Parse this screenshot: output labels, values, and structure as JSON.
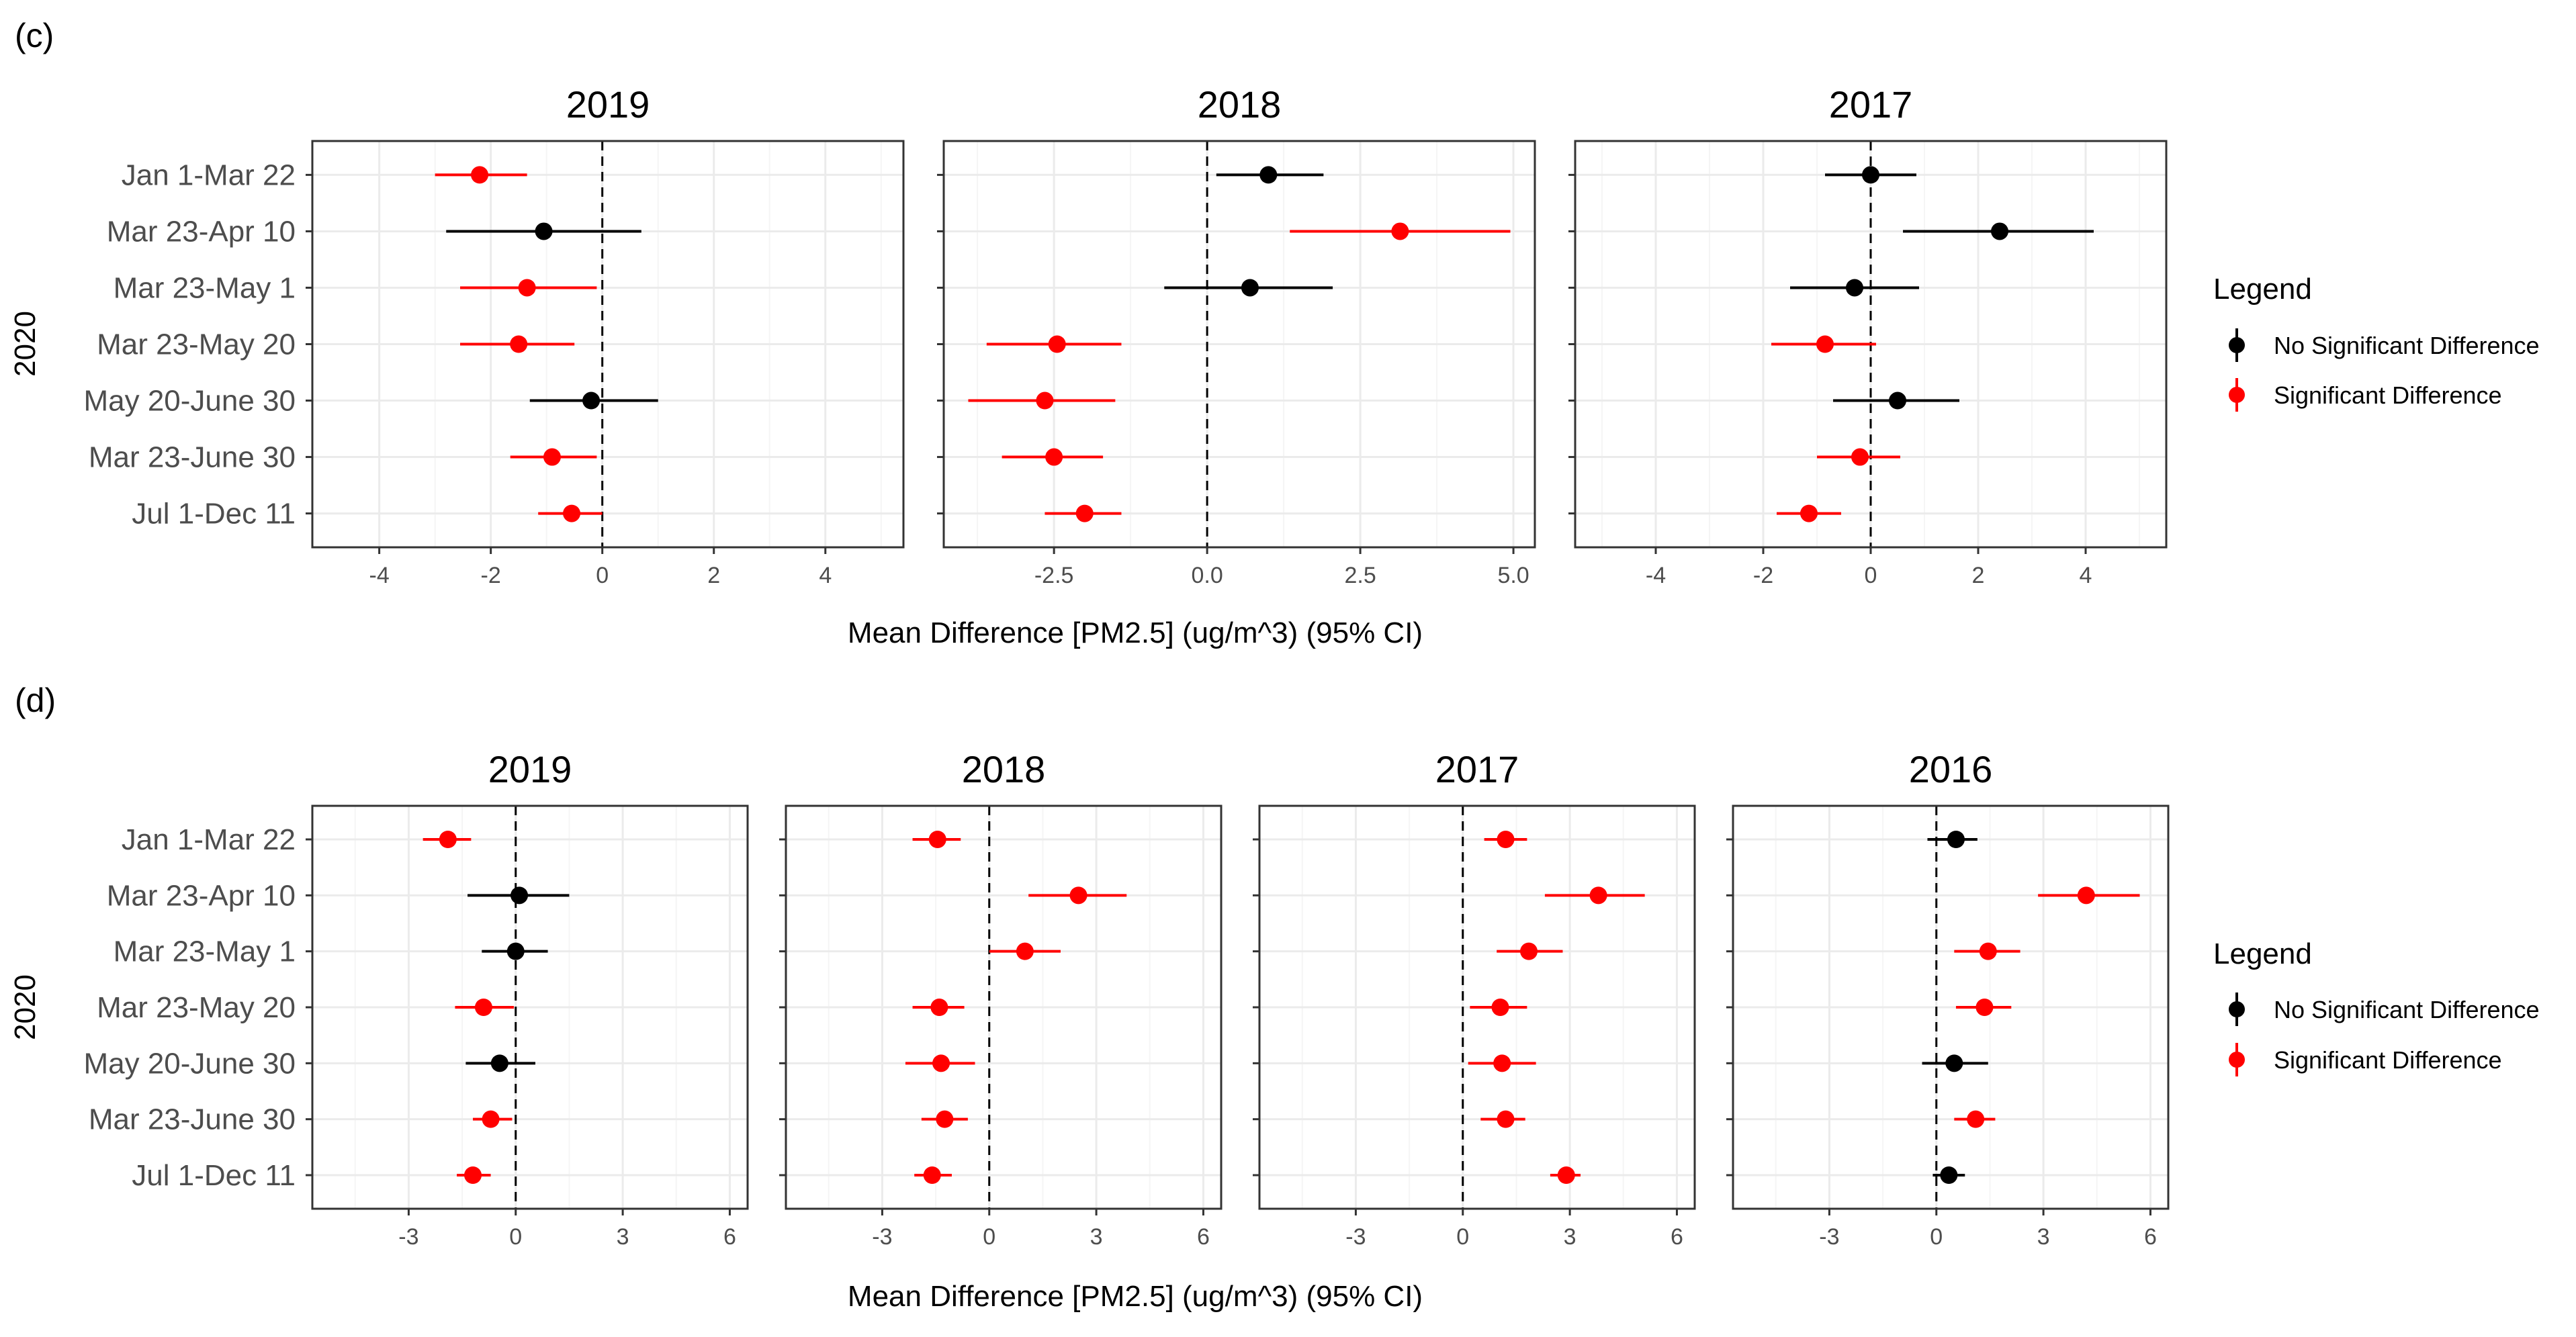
{
  "colors": {
    "no_significant": "#000000",
    "significant": "#ff0000",
    "grid_major": "#ebebeb",
    "grid_minor": "#f5f5f5",
    "axis_text": "#4d4d4d"
  },
  "chart_data": [
    {
      "type": "forest",
      "panel_label": "(c)",
      "y_axis_title": "2020",
      "x_axis_title": "Mean Difference [PM2.5] (ug/m^3) (95% CI)",
      "categories": [
        "Jan 1-Mar 22",
        "Mar 23-Apr 10",
        "Mar 23-May 1",
        "Mar 23-May 20",
        "May 20-June 30",
        "Mar 23-June 30",
        "Jul 1-Dec 11"
      ],
      "legend": {
        "title": "Legend",
        "entries": [
          {
            "label": "No Significant Difference",
            "color": "#000000"
          },
          {
            "label": "Significant Difference",
            "color": "#ff0000"
          }
        ]
      },
      "facets": [
        {
          "title": "2019",
          "xlim": [
            -5.2,
            5.4
          ],
          "xticks": [
            -4,
            -2,
            0,
            2,
            4
          ],
          "xtick_labels": [
            "-4",
            "-2",
            "0",
            "2",
            "4"
          ],
          "minor_ticks": [
            -3,
            -1,
            1,
            3,
            5
          ],
          "points": [
            {
              "category": "Jan 1-Mar 22",
              "estimate": -2.2,
              "lower": -3.0,
              "upper": -1.35,
              "significant": true
            },
            {
              "category": "Mar 23-Apr 10",
              "estimate": -1.05,
              "lower": -2.8,
              "upper": 0.7,
              "significant": false
            },
            {
              "category": "Mar 23-May 1",
              "estimate": -1.35,
              "lower": -2.55,
              "upper": -0.1,
              "significant": true
            },
            {
              "category": "Mar 23-May 20",
              "estimate": -1.5,
              "lower": -2.55,
              "upper": -0.5,
              "significant": true
            },
            {
              "category": "May 20-June 30",
              "estimate": -0.2,
              "lower": -1.3,
              "upper": 1.0,
              "significant": false
            },
            {
              "category": "Mar 23-June 30",
              "estimate": -0.9,
              "lower": -1.65,
              "upper": -0.1,
              "significant": true
            },
            {
              "category": "Jul 1-Dec 11",
              "estimate": -0.55,
              "lower": -1.15,
              "upper": 0.0,
              "significant": true
            }
          ]
        },
        {
          "title": "2018",
          "xlim": [
            -4.3,
            5.35
          ],
          "xticks": [
            -2.5,
            0.0,
            2.5,
            5.0
          ],
          "xtick_labels": [
            "-2.5",
            "0.0",
            "2.5",
            "5.0"
          ],
          "minor_ticks": [
            -3.75,
            -1.25,
            1.25,
            3.75
          ],
          "points": [
            {
              "category": "Jan 1-Mar 22",
              "estimate": 1.0,
              "lower": 0.15,
              "upper": 1.9,
              "significant": false
            },
            {
              "category": "Mar 23-Apr 10",
              "estimate": 3.15,
              "lower": 1.35,
              "upper": 4.95,
              "significant": true
            },
            {
              "category": "Mar 23-May 1",
              "estimate": 0.7,
              "lower": -0.7,
              "upper": 2.05,
              "significant": false
            },
            {
              "category": "Mar 23-May 20",
              "estimate": -2.45,
              "lower": -3.6,
              "upper": -1.4,
              "significant": true
            },
            {
              "category": "May 20-June 30",
              "estimate": -2.65,
              "lower": -3.9,
              "upper": -1.5,
              "significant": true
            },
            {
              "category": "Mar 23-June 30",
              "estimate": -2.5,
              "lower": -3.35,
              "upper": -1.7,
              "significant": true
            },
            {
              "category": "Jul 1-Dec 11",
              "estimate": -2.0,
              "lower": -2.65,
              "upper": -1.4,
              "significant": true
            }
          ]
        },
        {
          "title": "2017",
          "xlim": [
            -5.5,
            5.5
          ],
          "xticks": [
            -4,
            -2,
            0,
            2,
            4
          ],
          "xtick_labels": [
            "-4",
            "-2",
            "0",
            "2",
            "4"
          ],
          "minor_ticks": [
            -5,
            -3,
            -1,
            1,
            3,
            5
          ],
          "points": [
            {
              "category": "Jan 1-Mar 22",
              "estimate": 0.0,
              "lower": -0.85,
              "upper": 0.85,
              "significant": false
            },
            {
              "category": "Mar 23-Apr 10",
              "estimate": 2.4,
              "lower": 0.6,
              "upper": 4.15,
              "significant": false
            },
            {
              "category": "Mar 23-May 1",
              "estimate": -0.3,
              "lower": -1.5,
              "upper": 0.9,
              "significant": false
            },
            {
              "category": "Mar 23-May 20",
              "estimate": -0.85,
              "lower": -1.85,
              "upper": 0.1,
              "significant": true
            },
            {
              "category": "May 20-June 30",
              "estimate": 0.5,
              "lower": -0.7,
              "upper": 1.65,
              "significant": false
            },
            {
              "category": "Mar 23-June 30",
              "estimate": -0.2,
              "lower": -1.0,
              "upper": 0.55,
              "significant": true
            },
            {
              "category": "Jul 1-Dec 11",
              "estimate": -1.15,
              "lower": -1.75,
              "upper": -0.55,
              "significant": true
            }
          ]
        }
      ]
    },
    {
      "type": "forest",
      "panel_label": "(d)",
      "y_axis_title": "2020",
      "x_axis_title": "Mean Difference [PM2.5] (ug/m^3) (95% CI)",
      "categories": [
        "Jan 1-Mar 22",
        "Mar 23-Apr 10",
        "Mar 23-May 1",
        "Mar 23-May 20",
        "May 20-June 30",
        "Mar 23-June 30",
        "Jul 1-Dec 11"
      ],
      "legend": {
        "title": "Legend",
        "entries": [
          {
            "label": "No Significant Difference",
            "color": "#000000"
          },
          {
            "label": "Significant Difference",
            "color": "#ff0000"
          }
        ]
      },
      "facets": [
        {
          "title": "2019",
          "xlim": [
            -5.7,
            6.5
          ],
          "xticks": [
            -3,
            0,
            3,
            6
          ],
          "xtick_labels": [
            "-3",
            "0",
            "3",
            "6"
          ],
          "minor_ticks": [
            -4.5,
            -1.5,
            1.5,
            4.5
          ],
          "points": [
            {
              "category": "Jan 1-Mar 22",
              "estimate": -1.9,
              "lower": -2.6,
              "upper": -1.25,
              "significant": true
            },
            {
              "category": "Mar 23-Apr 10",
              "estimate": 0.1,
              "lower": -1.35,
              "upper": 1.5,
              "significant": false
            },
            {
              "category": "Mar 23-May 1",
              "estimate": 0.0,
              "lower": -0.95,
              "upper": 0.9,
              "significant": false
            },
            {
              "category": "Mar 23-May 20",
              "estimate": -0.9,
              "lower": -1.7,
              "upper": -0.05,
              "significant": true
            },
            {
              "category": "May 20-June 30",
              "estimate": -0.45,
              "lower": -1.4,
              "upper": 0.55,
              "significant": false
            },
            {
              "category": "Mar 23-June 30",
              "estimate": -0.7,
              "lower": -1.2,
              "upper": -0.1,
              "significant": true
            },
            {
              "category": "Jul 1-Dec 11",
              "estimate": -1.2,
              "lower": -1.65,
              "upper": -0.7,
              "significant": true
            }
          ]
        },
        {
          "title": "2018",
          "xlim": [
            -5.7,
            6.5
          ],
          "xticks": [
            -3,
            0,
            3,
            6
          ],
          "xtick_labels": [
            "-3",
            "0",
            "3",
            "6"
          ],
          "minor_ticks": [
            -4.5,
            -1.5,
            1.5,
            4.5
          ],
          "points": [
            {
              "category": "Jan 1-Mar 22",
              "estimate": -1.45,
              "lower": -2.15,
              "upper": -0.8,
              "significant": true
            },
            {
              "category": "Mar 23-Apr 10",
              "estimate": 2.5,
              "lower": 1.1,
              "upper": 3.85,
              "significant": true
            },
            {
              "category": "Mar 23-May 1",
              "estimate": 1.0,
              "lower": 0.0,
              "upper": 2.0,
              "significant": true
            },
            {
              "category": "Mar 23-May 20",
              "estimate": -1.4,
              "lower": -2.15,
              "upper": -0.7,
              "significant": true
            },
            {
              "category": "May 20-June 30",
              "estimate": -1.35,
              "lower": -2.35,
              "upper": -0.4,
              "significant": true
            },
            {
              "category": "Mar 23-June 30",
              "estimate": -1.25,
              "lower": -1.9,
              "upper": -0.6,
              "significant": true
            },
            {
              "category": "Jul 1-Dec 11",
              "estimate": -1.6,
              "lower": -2.1,
              "upper": -1.05,
              "significant": true
            }
          ]
        },
        {
          "title": "2017",
          "xlim": [
            -5.7,
            6.5
          ],
          "xticks": [
            -3,
            0,
            3,
            6
          ],
          "xtick_labels": [
            "-3",
            "0",
            "3",
            "6"
          ],
          "minor_ticks": [
            -4.5,
            -1.5,
            1.5,
            4.5
          ],
          "points": [
            {
              "category": "Jan 1-Mar 22",
              "estimate": 1.2,
              "lower": 0.6,
              "upper": 1.8,
              "significant": true
            },
            {
              "category": "Mar 23-Apr 10",
              "estimate": 3.8,
              "lower": 2.3,
              "upper": 5.1,
              "significant": true
            },
            {
              "category": "Mar 23-May 1",
              "estimate": 1.85,
              "lower": 0.95,
              "upper": 2.8,
              "significant": true
            },
            {
              "category": "Mar 23-May 20",
              "estimate": 1.05,
              "lower": 0.2,
              "upper": 1.8,
              "significant": true
            },
            {
              "category": "May 20-June 30",
              "estimate": 1.1,
              "lower": 0.15,
              "upper": 2.05,
              "significant": true
            },
            {
              "category": "Mar 23-June 30",
              "estimate": 1.2,
              "lower": 0.5,
              "upper": 1.75,
              "significant": true
            },
            {
              "category": "Jul 1-Dec 11",
              "estimate": 2.9,
              "lower": 2.45,
              "upper": 3.3,
              "significant": true
            }
          ]
        },
        {
          "title": "2016",
          "xlim": [
            -5.7,
            6.5
          ],
          "xticks": [
            -3,
            0,
            3,
            6
          ],
          "xtick_labels": [
            "-3",
            "0",
            "3",
            "6"
          ],
          "minor_ticks": [
            -4.5,
            -1.5,
            1.5,
            4.5
          ],
          "points": [
            {
              "category": "Jan 1-Mar 22",
              "estimate": 0.55,
              "lower": -0.25,
              "upper": 1.15,
              "significant": false
            },
            {
              "category": "Mar 23-Apr 10",
              "estimate": 4.2,
              "lower": 2.85,
              "upper": 5.7,
              "significant": true
            },
            {
              "category": "Mar 23-May 1",
              "estimate": 1.45,
              "lower": 0.5,
              "upper": 2.35,
              "significant": true
            },
            {
              "category": "Mar 23-May 20",
              "estimate": 1.35,
              "lower": 0.55,
              "upper": 2.1,
              "significant": true
            },
            {
              "category": "May 20-June 30",
              "estimate": 0.5,
              "lower": -0.4,
              "upper": 1.45,
              "significant": false
            },
            {
              "category": "Mar 23-June 30",
              "estimate": 1.1,
              "lower": 0.5,
              "upper": 1.65,
              "significant": true
            },
            {
              "category": "Jul 1-Dec 11",
              "estimate": 0.35,
              "lower": -0.1,
              "upper": 0.8,
              "significant": false
            }
          ]
        }
      ]
    }
  ]
}
